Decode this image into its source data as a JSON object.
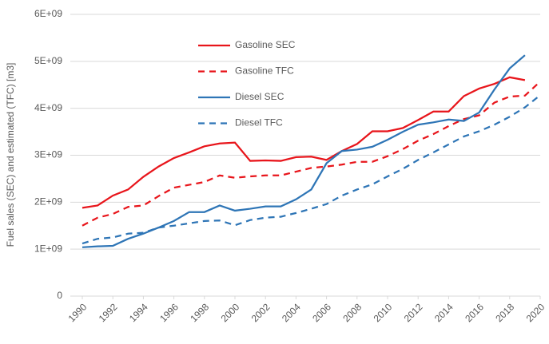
{
  "chart_data": {
    "type": "line",
    "y_label": "Fuel sales (SEC) and estimated (TFC) [m3]",
    "x": [
      1990,
      1991,
      1992,
      1993,
      1994,
      1995,
      1996,
      1997,
      1998,
      1999,
      2000,
      2001,
      2002,
      2003,
      2004,
      2005,
      2006,
      2007,
      2008,
      2009,
      2010,
      2011,
      2012,
      2013,
      2014,
      2015,
      2016,
      2017,
      2018,
      2019,
      2020
    ],
    "xlim": [
      1990,
      2020
    ],
    "xticks": [
      1990,
      1992,
      1994,
      1996,
      1998,
      2000,
      2002,
      2004,
      2006,
      2008,
      2010,
      2012,
      2014,
      2016,
      2018,
      2020
    ],
    "ylim": [
      0,
      6000000000.0
    ],
    "yticks": [
      0,
      {
        "value": 1000000000.0,
        "label": "1E+09"
      },
      {
        "value": 2000000000.0,
        "label": "2E+09"
      },
      {
        "value": 3000000000.0,
        "label": "3E+09"
      },
      {
        "value": 4000000000.0,
        "label": "4E+09"
      },
      {
        "value": 5000000000.0,
        "label": "5E+09"
      },
      {
        "value": 6000000000.0,
        "label": "6E+09"
      }
    ],
    "grid": true,
    "legend": "upper center",
    "series": [
      {
        "name": "Gasoline SEC",
        "color": "#e8151b",
        "style": "solid",
        "values": [
          1880000000.0,
          1930000000.0,
          2140000000.0,
          2270000000.0,
          2540000000.0,
          2760000000.0,
          2940000000.0,
          3060000000.0,
          3190000000.0,
          3250000000.0,
          3270000000.0,
          2880000000.0,
          2890000000.0,
          2880000000.0,
          2960000000.0,
          2970000000.0,
          2900000000.0,
          3090000000.0,
          3240000000.0,
          3510000000.0,
          3510000000.0,
          3580000000.0,
          3750000000.0,
          3930000000.0,
          3930000000.0,
          4260000000.0,
          4420000000.0,
          4520000000.0,
          4660000000.0,
          4600000000.0,
          null
        ]
      },
      {
        "name": "Gasoline TFC",
        "color": "#e8151b",
        "style": "dashed",
        "values": [
          1500000000.0,
          1670000000.0,
          1750000000.0,
          1900000000.0,
          1930000000.0,
          2130000000.0,
          2310000000.0,
          2370000000.0,
          2430000000.0,
          2570000000.0,
          2520000000.0,
          2550000000.0,
          2570000000.0,
          2570000000.0,
          2650000000.0,
          2730000000.0,
          2760000000.0,
          2800000000.0,
          2860000000.0,
          2860000000.0,
          2980000000.0,
          3130000000.0,
          3310000000.0,
          3450000000.0,
          3620000000.0,
          3770000000.0,
          3850000000.0,
          4120000000.0,
          4250000000.0,
          4270000000.0,
          4570000000.0
        ]
      },
      {
        "name": "Diesel SEC",
        "color": "#2e75b6",
        "style": "solid",
        "values": [
          1040000000.0,
          1060000000.0,
          1070000000.0,
          1220000000.0,
          1330000000.0,
          1460000000.0,
          1600000000.0,
          1790000000.0,
          1790000000.0,
          1930000000.0,
          1820000000.0,
          1860000000.0,
          1910000000.0,
          1910000000.0,
          2060000000.0,
          2270000000.0,
          2830000000.0,
          3090000000.0,
          3120000000.0,
          3180000000.0,
          3330000000.0,
          3500000000.0,
          3650000000.0,
          3700000000.0,
          3760000000.0,
          3730000000.0,
          3910000000.0,
          4400000000.0,
          4850000000.0,
          5130000000.0,
          null
        ]
      },
      {
        "name": "Diesel TFC",
        "color": "#2e75b6",
        "style": "dashed",
        "values": [
          1120000000.0,
          1220000000.0,
          1250000000.0,
          1330000000.0,
          1350000000.0,
          1460000000.0,
          1500000000.0,
          1550000000.0,
          1600000000.0,
          1610000000.0,
          1510000000.0,
          1620000000.0,
          1670000000.0,
          1690000000.0,
          1770000000.0,
          1860000000.0,
          1960000000.0,
          2140000000.0,
          2270000000.0,
          2380000000.0,
          2550000000.0,
          2710000000.0,
          2900000000.0,
          3060000000.0,
          3230000000.0,
          3400000000.0,
          3510000000.0,
          3650000000.0,
          3820000000.0,
          4020000000.0,
          4280000000.0
        ]
      }
    ]
  }
}
